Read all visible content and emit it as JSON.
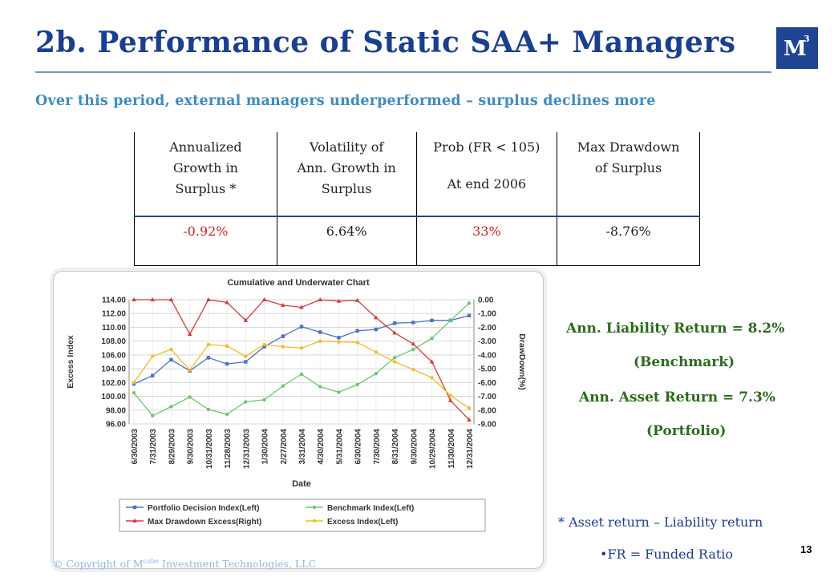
{
  "slide": {
    "title": "2b. Performance of Static SAA+ Managers",
    "subtitle": "Over this period, external managers underperformed – surplus declines more",
    "logo": {
      "letter": "M",
      "sup": "3"
    },
    "page_number": "13",
    "copyright": {
      "prefix": "© Copyright of M",
      "sup": "cube",
      "suffix": " Investment Technologies, LLC"
    }
  },
  "metrics_table": {
    "headers": [
      [
        "Annualized",
        "Growth in",
        "Surplus *"
      ],
      [
        "Volatility of",
        "Ann. Growth in",
        "Surplus"
      ],
      [
        "Prob (FR < 105)",
        "",
        "At end 2006"
      ],
      [
        "Max Drawdown",
        "of Surplus",
        ""
      ]
    ],
    "values": [
      "-0.92%",
      "6.64%",
      "33%",
      "-8.76%"
    ],
    "value_colors": [
      "#d42020",
      "#222222",
      "#d42020",
      "#222222"
    ]
  },
  "returns_note": {
    "liability": "Ann. Liability Return = 8.2%",
    "liability_tag": "(Benchmark)",
    "asset": "Ann. Asset Return = 7.3%",
    "asset_tag": "(Portfolio)"
  },
  "footnotes": {
    "star": "* Asset return – Liability return",
    "fr": "•FR = Funded Ratio"
  },
  "chart_data": {
    "type": "line",
    "title": "Cumulative and Underwater Chart",
    "xlabel": "Date",
    "ylabel_left": "Excess Index",
    "ylabel_right": "DrawDown(%)",
    "ylim_left": [
      96,
      114
    ],
    "ylim_right": [
      -9,
      0
    ],
    "yticks_left": [
      "114.00",
      "112.00",
      "110.00",
      "108.00",
      "106.00",
      "104.00",
      "102.00",
      "100.00",
      "98.00",
      "96.00"
    ],
    "yticks_right": [
      "0.00",
      "-1.00",
      "-2.00",
      "-3.00",
      "-4.00",
      "-5.00",
      "-6.00",
      "-7.00",
      "-8.00",
      "-9.00"
    ],
    "grid": true,
    "legend_position": "bottom",
    "categories": [
      "6/30/2003",
      "7/31/2003",
      "8/29/2003",
      "9/30/2003",
      "10/31/2003",
      "11/28/2003",
      "12/31/2003",
      "1/30/2004",
      "2/27/2004",
      "3/31/2004",
      "4/30/2004",
      "5/31/2004",
      "6/30/2004",
      "7/30/2004",
      "8/31/2004",
      "9/30/2004",
      "10/29/2004",
      "11/30/2004",
      "12/31/2004"
    ],
    "series": [
      {
        "name": "Portfolio Decision Index(Left)",
        "axis": "left",
        "color": "#4a72c8",
        "marker": "square",
        "values": [
          101.8,
          103.0,
          105.3,
          103.7,
          105.6,
          104.7,
          105.0,
          107.2,
          108.7,
          110.1,
          109.3,
          108.5,
          109.5,
          109.7,
          110.6,
          110.7,
          111.0,
          111.0,
          111.7
        ]
      },
      {
        "name": "Benchmark Index(Left)",
        "axis": "left",
        "color": "#6dc86d",
        "marker": "circle",
        "values": [
          100.5,
          97.2,
          98.5,
          99.9,
          98.1,
          97.4,
          99.2,
          99.5,
          101.5,
          103.2,
          101.4,
          100.6,
          101.7,
          103.3,
          105.6,
          106.8,
          108.4,
          111.0,
          113.5
        ]
      },
      {
        "name": "Max Drawdown Excess(Right)",
        "axis": "right",
        "color": "#d63a3a",
        "marker": "triangle",
        "values": [
          0.0,
          0.0,
          0.0,
          -2.5,
          0.0,
          -0.2,
          -1.5,
          0.0,
          -0.4,
          -0.55,
          0.0,
          -0.1,
          -0.05,
          -1.3,
          -2.4,
          -3.2,
          -4.5,
          -7.3,
          -8.7
        ]
      },
      {
        "name": "Excess Index(Left)",
        "axis": "left",
        "color": "#f2bd2a",
        "marker": "circle",
        "values": [
          102.0,
          105.8,
          106.8,
          103.8,
          107.5,
          107.3,
          105.8,
          107.5,
          107.2,
          107.0,
          108.0,
          107.9,
          107.8,
          106.4,
          105.0,
          103.9,
          102.7,
          100.1,
          98.3
        ]
      }
    ],
    "legend_order": [
      0,
      1,
      2,
      3
    ]
  }
}
